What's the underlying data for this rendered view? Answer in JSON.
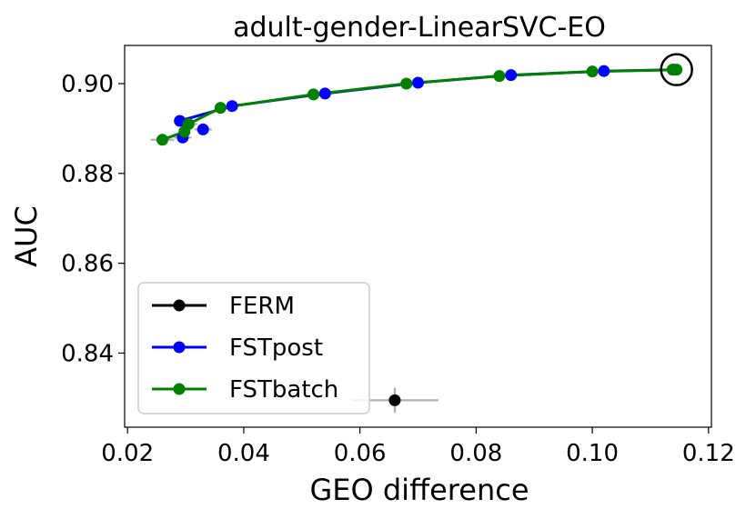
{
  "chart_data": {
    "type": "scatter",
    "title": "adult-gender-LinearSVC-EO",
    "xlabel": "GEO difference",
    "ylabel": "AUC",
    "xlim": [
      0.0195,
      0.1205
    ],
    "ylim": [
      0.8235,
      0.9085
    ],
    "xticks": [
      0.02,
      0.04,
      0.06,
      0.08,
      0.1,
      0.12
    ],
    "xtick_labels": [
      "0.02",
      "0.04",
      "0.06",
      "0.08",
      "0.10",
      "0.12"
    ],
    "yticks": [
      0.84,
      0.86,
      0.88,
      0.9
    ],
    "ytick_labels": [
      "0.84",
      "0.86",
      "0.88",
      "0.90"
    ],
    "legend_position": "lower-left",
    "series": [
      {
        "name": "FERM",
        "color": "#000000",
        "connected": false,
        "points": [
          {
            "x": 0.066,
            "y": 0.8295,
            "xerr": 0.0075,
            "yerr": 0.0028
          }
        ]
      },
      {
        "name": "FSTpost",
        "color": "#0000ff",
        "connected": true,
        "points": [
          {
            "x": 0.029,
            "y": 0.8917,
            "xerr": 0.0,
            "yerr": 0.0
          },
          {
            "x": 0.0295,
            "y": 0.888,
            "xerr": 0.0015,
            "yerr": 0.0
          },
          {
            "x": 0.033,
            "y": 0.8898,
            "xerr": 0.0015,
            "yerr": 0.0
          },
          {
            "x": 0.038,
            "y": 0.895,
            "xerr": 0.0,
            "yerr": 0.0
          },
          {
            "x": 0.054,
            "y": 0.8978,
            "xerr": 0.0,
            "yerr": 0.0
          },
          {
            "x": 0.07,
            "y": 0.9002,
            "xerr": 0.0,
            "yerr": 0.0
          },
          {
            "x": 0.086,
            "y": 0.9019,
            "xerr": 0.0,
            "yerr": 0.0
          },
          {
            "x": 0.102,
            "y": 0.9028,
            "xerr": 0.0,
            "yerr": 0.0
          },
          {
            "x": 0.114,
            "y": 0.9031,
            "xerr": 0.0,
            "yerr": 0.0
          }
        ],
        "line": [
          {
            "x": 0.029,
            "y": 0.8917
          },
          {
            "x": 0.038,
            "y": 0.895
          },
          {
            "x": 0.054,
            "y": 0.8978
          },
          {
            "x": 0.07,
            "y": 0.9002
          },
          {
            "x": 0.086,
            "y": 0.9019
          },
          {
            "x": 0.102,
            "y": 0.9028
          },
          {
            "x": 0.114,
            "y": 0.9031
          }
        ]
      },
      {
        "name": "FSTbatch",
        "color": "#008000",
        "connected": true,
        "points": [
          {
            "x": 0.026,
            "y": 0.8875,
            "xerr": 0.002,
            "yerr": 0.0
          },
          {
            "x": 0.0298,
            "y": 0.8893,
            "xerr": 0.001,
            "yerr": 0.0
          },
          {
            "x": 0.0305,
            "y": 0.891,
            "xerr": 0.0015,
            "yerr": 0.0
          },
          {
            "x": 0.036,
            "y": 0.8946,
            "xerr": 0.0,
            "yerr": 0.0
          },
          {
            "x": 0.052,
            "y": 0.8976,
            "xerr": 0.0,
            "yerr": 0.0
          },
          {
            "x": 0.068,
            "y": 0.9,
            "xerr": 0.0,
            "yerr": 0.0
          },
          {
            "x": 0.084,
            "y": 0.9017,
            "xerr": 0.0,
            "yerr": 0.0
          },
          {
            "x": 0.1,
            "y": 0.9027,
            "xerr": 0.0,
            "yerr": 0.0
          },
          {
            "x": 0.1138,
            "y": 0.9031,
            "xerr": 0.0,
            "yerr": 0.0
          },
          {
            "x": 0.1145,
            "y": 0.9031,
            "xerr": 0.0,
            "yerr": 0.0
          }
        ],
        "line": [
          {
            "x": 0.026,
            "y": 0.8875
          },
          {
            "x": 0.0298,
            "y": 0.8893
          },
          {
            "x": 0.0305,
            "y": 0.891
          },
          {
            "x": 0.036,
            "y": 0.8946
          },
          {
            "x": 0.052,
            "y": 0.8976
          },
          {
            "x": 0.068,
            "y": 0.9
          },
          {
            "x": 0.084,
            "y": 0.9017
          },
          {
            "x": 0.1,
            "y": 0.9027
          },
          {
            "x": 0.1145,
            "y": 0.9031
          }
        ]
      }
    ],
    "annotations": [
      {
        "type": "circle",
        "x": 0.1145,
        "y": 0.9031,
        "color": "#000000"
      }
    ]
  }
}
